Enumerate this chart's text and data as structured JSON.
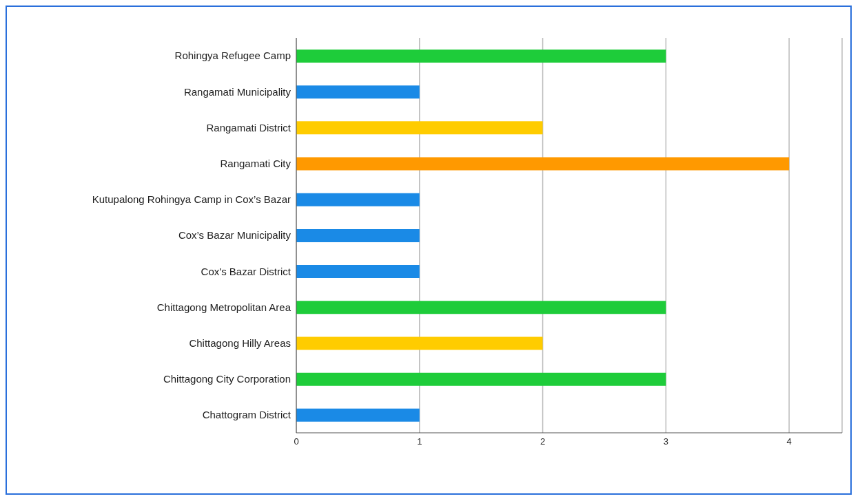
{
  "chart_data": {
    "type": "bar",
    "orientation": "horizontal",
    "categories": [
      "Rohingya Refugee Camp",
      "Rangamati Municipality",
      "Rangamati District",
      "Rangamati City",
      "Kutupalong Rohingya Camp in Cox’s Bazar",
      "Cox’s Bazar Municipality",
      "Cox's Bazar District",
      "Chittagong Metropolitan Area",
      "Chittagong Hilly Areas",
      "Chittagong City Corporation",
      "Chattogram District"
    ],
    "values": [
      3,
      1,
      2,
      4,
      1,
      1,
      1,
      3,
      2,
      3,
      1
    ],
    "colors": [
      "#1ecc3a",
      "#1a8ae6",
      "#ffcc00",
      "#ff9900",
      "#1a8ae6",
      "#1a8ae6",
      "#1a8ae6",
      "#1ecc3a",
      "#ffcc00",
      "#1ecc3a",
      "#1a8ae6"
    ],
    "xlim": [
      0,
      4.43
    ],
    "xticks": [
      0,
      1,
      2,
      3,
      4
    ],
    "grid": "x",
    "legend": false
  }
}
